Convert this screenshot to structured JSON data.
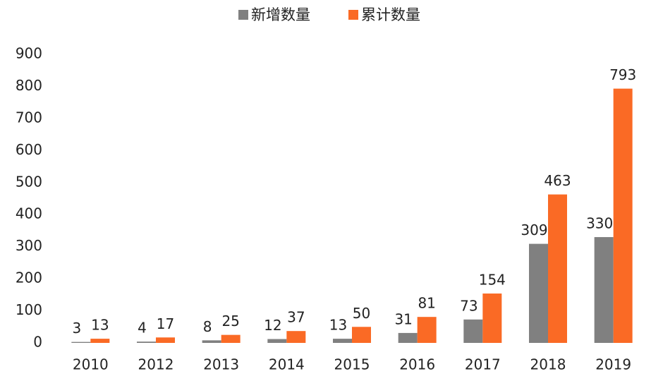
{
  "chart_data": {
    "type": "bar",
    "categories": [
      "2010",
      "2012",
      "2013",
      "2014",
      "2015",
      "2016",
      "2017",
      "2018",
      "2019"
    ],
    "series": [
      {
        "name": "新增数量",
        "color": "#808080",
        "values": [
          3,
          4,
          8,
          12,
          13,
          31,
          73,
          309,
          330
        ]
      },
      {
        "name": "累计数量",
        "color": "#fa6a25",
        "values": [
          13,
          17,
          25,
          37,
          50,
          81,
          154,
          463,
          793
        ]
      }
    ],
    "ylim": [
      0,
      900
    ],
    "yticks": [
      0,
      100,
      200,
      300,
      400,
      500,
      600,
      700,
      800,
      900
    ],
    "grid": false,
    "legend": "top"
  }
}
